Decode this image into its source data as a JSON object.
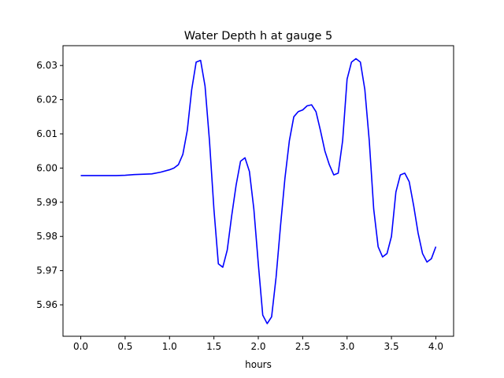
{
  "chart_data": {
    "type": "line",
    "title": "Water Depth h at gauge 5",
    "xlabel": "hours",
    "ylabel": "",
    "xlim": [
      -0.2,
      4.2
    ],
    "ylim": [
      5.9508,
      6.0358
    ],
    "xticks": [
      0.0,
      0.5,
      1.0,
      1.5,
      2.0,
      2.5,
      3.0,
      3.5,
      4.0
    ],
    "xtick_labels": [
      "0.0",
      "0.5",
      "1.0",
      "1.5",
      "2.0",
      "2.5",
      "3.0",
      "3.5",
      "4.0"
    ],
    "yticks": [
      5.96,
      5.97,
      5.98,
      5.99,
      6.0,
      6.01,
      6.02,
      6.03
    ],
    "ytick_labels": [
      "5.96",
      "5.97",
      "5.98",
      "5.99",
      "6.00",
      "6.01",
      "6.02",
      "6.03"
    ],
    "grid": false,
    "series": [
      {
        "color": "#0000ff",
        "x": [
          0.0,
          0.2,
          0.4,
          0.5,
          0.6,
          0.8,
          0.9,
          1.0,
          1.05,
          1.1,
          1.15,
          1.2,
          1.25,
          1.3,
          1.35,
          1.4,
          1.45,
          1.5,
          1.55,
          1.6,
          1.65,
          1.7,
          1.75,
          1.8,
          1.85,
          1.9,
          1.95,
          2.0,
          2.05,
          2.1,
          2.15,
          2.2,
          2.25,
          2.3,
          2.35,
          2.4,
          2.45,
          2.5,
          2.55,
          2.6,
          2.65,
          2.7,
          2.75,
          2.8,
          2.85,
          2.9,
          2.95,
          3.0,
          3.05,
          3.1,
          3.15,
          3.2,
          3.25,
          3.3,
          3.35,
          3.4,
          3.45,
          3.5,
          3.55,
          3.6,
          3.65,
          3.7,
          3.75,
          3.8,
          3.85,
          3.9,
          3.95,
          4.0
        ],
        "y": [
          5.9978,
          5.9978,
          5.9978,
          5.9979,
          5.9981,
          5.9983,
          5.9988,
          5.9995,
          6.0,
          6.001,
          6.004,
          6.011,
          6.023,
          6.031,
          6.0315,
          6.024,
          6.008,
          5.988,
          5.972,
          5.971,
          5.976,
          5.986,
          5.995,
          6.002,
          6.003,
          5.999,
          5.988,
          5.972,
          5.957,
          5.9545,
          5.9565,
          5.968,
          5.983,
          5.997,
          6.008,
          6.015,
          6.0165,
          6.017,
          6.0182,
          6.0185,
          6.0165,
          6.011,
          6.005,
          6.001,
          5.998,
          5.9985,
          6.008,
          6.026,
          6.031,
          6.032,
          6.031,
          6.023,
          6.008,
          5.988,
          5.977,
          5.974,
          5.975,
          5.98,
          5.993,
          5.998,
          5.9985,
          5.996,
          5.989,
          5.981,
          5.975,
          5.9725,
          5.9735,
          5.977
        ]
      }
    ]
  }
}
